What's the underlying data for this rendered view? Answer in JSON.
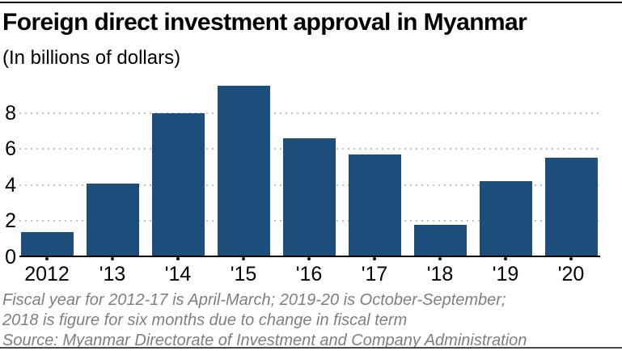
{
  "header": {
    "title": "Foreign direct investment approval in Myanmar",
    "subtitle": "(In billions of dollars)"
  },
  "chart_data": {
    "type": "bar",
    "categories": [
      "2012",
      "'13",
      "'14",
      "'15",
      "'16",
      "'17",
      "'18",
      "'19",
      "'20"
    ],
    "values": [
      1.4,
      4.1,
      8.0,
      9.5,
      6.6,
      5.7,
      1.8,
      4.2,
      5.5
    ],
    "title": "Foreign direct investment approval in Myanmar",
    "subtitle": "(In billions of dollars)",
    "xlabel": "",
    "ylabel": "",
    "ylim": [
      0,
      10
    ],
    "yticks": [
      0,
      2,
      4,
      6,
      8
    ],
    "grid": "horizontal-dotted",
    "legend": "none",
    "bar_color": "#1c4e7c"
  },
  "footer": {
    "notes": [
      "Fiscal year for 2012-17 is April-March; 2019-20 is October-September;",
      "2018 is figure for six months due to change in fiscal term"
    ],
    "source": "Source: Myanmar Directorate of Investment and Company Administration"
  }
}
